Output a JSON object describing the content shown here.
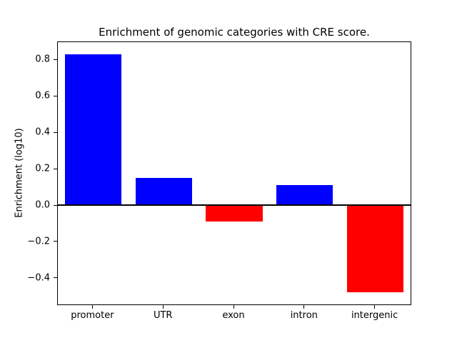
{
  "chart_data": {
    "type": "bar",
    "title": "Enrichment of genomic categories with CRE score.",
    "xlabel": "",
    "ylabel": "Enrichment (log10)",
    "categories": [
      "promoter",
      "UTR",
      "exon",
      "intron",
      "intergenic"
    ],
    "values": [
      0.83,
      0.15,
      -0.09,
      0.11,
      -0.48
    ],
    "bar_colors": [
      "#0000ff",
      "#0000ff",
      "#ff0000",
      "#0000ff",
      "#ff0000"
    ],
    "positive_color": "#0000ff",
    "negative_color": "#ff0000",
    "ylim": [
      -0.546,
      0.896
    ],
    "yticks": [
      -0.4,
      -0.2,
      0.0,
      0.2,
      0.4,
      0.6,
      0.8
    ],
    "zero_line": true,
    "grid": false,
    "legend": "none",
    "bar_width_fraction": 0.8
  }
}
